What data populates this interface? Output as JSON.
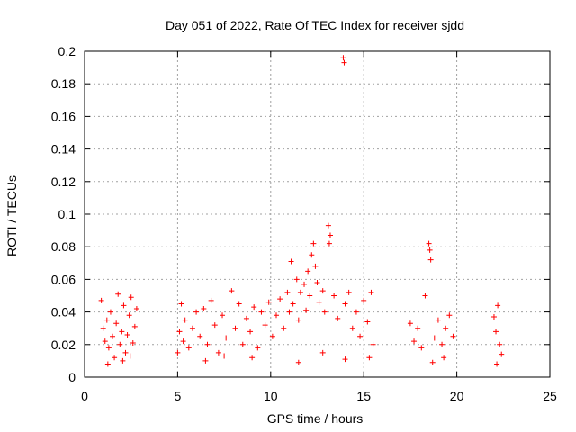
{
  "chart_data": {
    "type": "scatter",
    "title": "Day 051 of 2022, Rate Of TEC Index for receiver sjdd",
    "xlabel": "GPS time / hours",
    "ylabel": "ROTI / TECUs",
    "xlim": [
      0,
      25
    ],
    "ylim": [
      0,
      0.2
    ],
    "x_ticks": [
      "0",
      "5",
      "10",
      "15",
      "20",
      "25"
    ],
    "y_ticks": [
      "0",
      "0.02",
      "0.04",
      "0.06",
      "0.08",
      "0.1",
      "0.12",
      "0.14",
      "0.16",
      "0.18",
      "0.2"
    ],
    "grid": true,
    "legend": "none",
    "marker": "plus",
    "color": "#ff0000",
    "series": [
      {
        "values": [
          [
            0.9,
            0.047
          ],
          [
            1.0,
            0.03
          ],
          [
            1.1,
            0.022
          ],
          [
            1.2,
            0.035
          ],
          [
            1.3,
            0.018
          ],
          [
            1.4,
            0.04
          ],
          [
            1.5,
            0.025
          ],
          [
            1.6,
            0.012
          ],
          [
            1.7,
            0.033
          ],
          [
            1.8,
            0.051
          ],
          [
            1.9,
            0.02
          ],
          [
            2.0,
            0.028
          ],
          [
            2.1,
            0.044
          ],
          [
            2.2,
            0.015
          ],
          [
            2.3,
            0.026
          ],
          [
            2.4,
            0.038
          ],
          [
            2.5,
            0.049
          ],
          [
            2.6,
            0.021
          ],
          [
            2.7,
            0.031
          ],
          [
            2.8,
            0.042
          ],
          [
            1.25,
            0.008
          ],
          [
            2.05,
            0.01
          ],
          [
            2.45,
            0.013
          ],
          [
            5.0,
            0.015
          ],
          [
            5.1,
            0.028
          ],
          [
            5.2,
            0.045
          ],
          [
            5.3,
            0.022
          ],
          [
            5.4,
            0.035
          ],
          [
            5.6,
            0.018
          ],
          [
            5.8,
            0.03
          ],
          [
            6.0,
            0.04
          ],
          [
            6.2,
            0.025
          ],
          [
            6.4,
            0.042
          ],
          [
            6.6,
            0.02
          ],
          [
            6.8,
            0.047
          ],
          [
            7.0,
            0.032
          ],
          [
            7.2,
            0.015
          ],
          [
            7.4,
            0.038
          ],
          [
            7.6,
            0.024
          ],
          [
            7.9,
            0.053
          ],
          [
            8.1,
            0.03
          ],
          [
            8.3,
            0.045
          ],
          [
            8.5,
            0.02
          ],
          [
            8.7,
            0.036
          ],
          [
            8.9,
            0.028
          ],
          [
            9.1,
            0.043
          ],
          [
            9.3,
            0.018
          ],
          [
            9.5,
            0.04
          ],
          [
            9.7,
            0.032
          ],
          [
            9.9,
            0.046
          ],
          [
            10.1,
            0.025
          ],
          [
            10.3,
            0.038
          ],
          [
            10.5,
            0.048
          ],
          [
            10.7,
            0.03
          ],
          [
            10.9,
            0.052
          ],
          [
            11.0,
            0.04
          ],
          [
            11.1,
            0.071
          ],
          [
            11.2,
            0.045
          ],
          [
            11.4,
            0.06
          ],
          [
            11.5,
            0.035
          ],
          [
            11.6,
            0.052
          ],
          [
            11.8,
            0.057
          ],
          [
            11.9,
            0.041
          ],
          [
            12.0,
            0.065
          ],
          [
            12.1,
            0.05
          ],
          [
            12.2,
            0.075
          ],
          [
            12.3,
            0.082
          ],
          [
            12.4,
            0.068
          ],
          [
            12.5,
            0.058
          ],
          [
            12.6,
            0.046
          ],
          [
            12.8,
            0.053
          ],
          [
            12.9,
            0.04
          ],
          [
            13.1,
            0.093
          ],
          [
            13.15,
            0.082
          ],
          [
            13.2,
            0.087
          ],
          [
            13.4,
            0.05
          ],
          [
            13.6,
            0.036
          ],
          [
            13.9,
            0.196
          ],
          [
            13.95,
            0.193
          ],
          [
            14.0,
            0.045
          ],
          [
            14.2,
            0.052
          ],
          [
            14.4,
            0.03
          ],
          [
            14.6,
            0.04
          ],
          [
            14.8,
            0.025
          ],
          [
            15.0,
            0.047
          ],
          [
            15.2,
            0.034
          ],
          [
            15.4,
            0.052
          ],
          [
            15.3,
            0.012
          ],
          [
            15.5,
            0.02
          ],
          [
            6.5,
            0.01
          ],
          [
            9.0,
            0.012
          ],
          [
            11.5,
            0.009
          ],
          [
            14.0,
            0.011
          ],
          [
            7.5,
            0.013
          ],
          [
            12.8,
            0.015
          ],
          [
            17.5,
            0.033
          ],
          [
            17.7,
            0.022
          ],
          [
            17.9,
            0.03
          ],
          [
            18.1,
            0.018
          ],
          [
            18.3,
            0.05
          ],
          [
            18.5,
            0.082
          ],
          [
            18.55,
            0.078
          ],
          [
            18.6,
            0.072
          ],
          [
            18.8,
            0.024
          ],
          [
            19.0,
            0.035
          ],
          [
            19.2,
            0.02
          ],
          [
            19.4,
            0.03
          ],
          [
            19.6,
            0.038
          ],
          [
            19.8,
            0.025
          ],
          [
            18.7,
            0.009
          ],
          [
            19.3,
            0.012
          ],
          [
            22.0,
            0.037
          ],
          [
            22.1,
            0.028
          ],
          [
            22.2,
            0.044
          ],
          [
            22.3,
            0.02
          ],
          [
            22.4,
            0.014
          ],
          [
            22.15,
            0.008
          ]
        ]
      }
    ]
  }
}
